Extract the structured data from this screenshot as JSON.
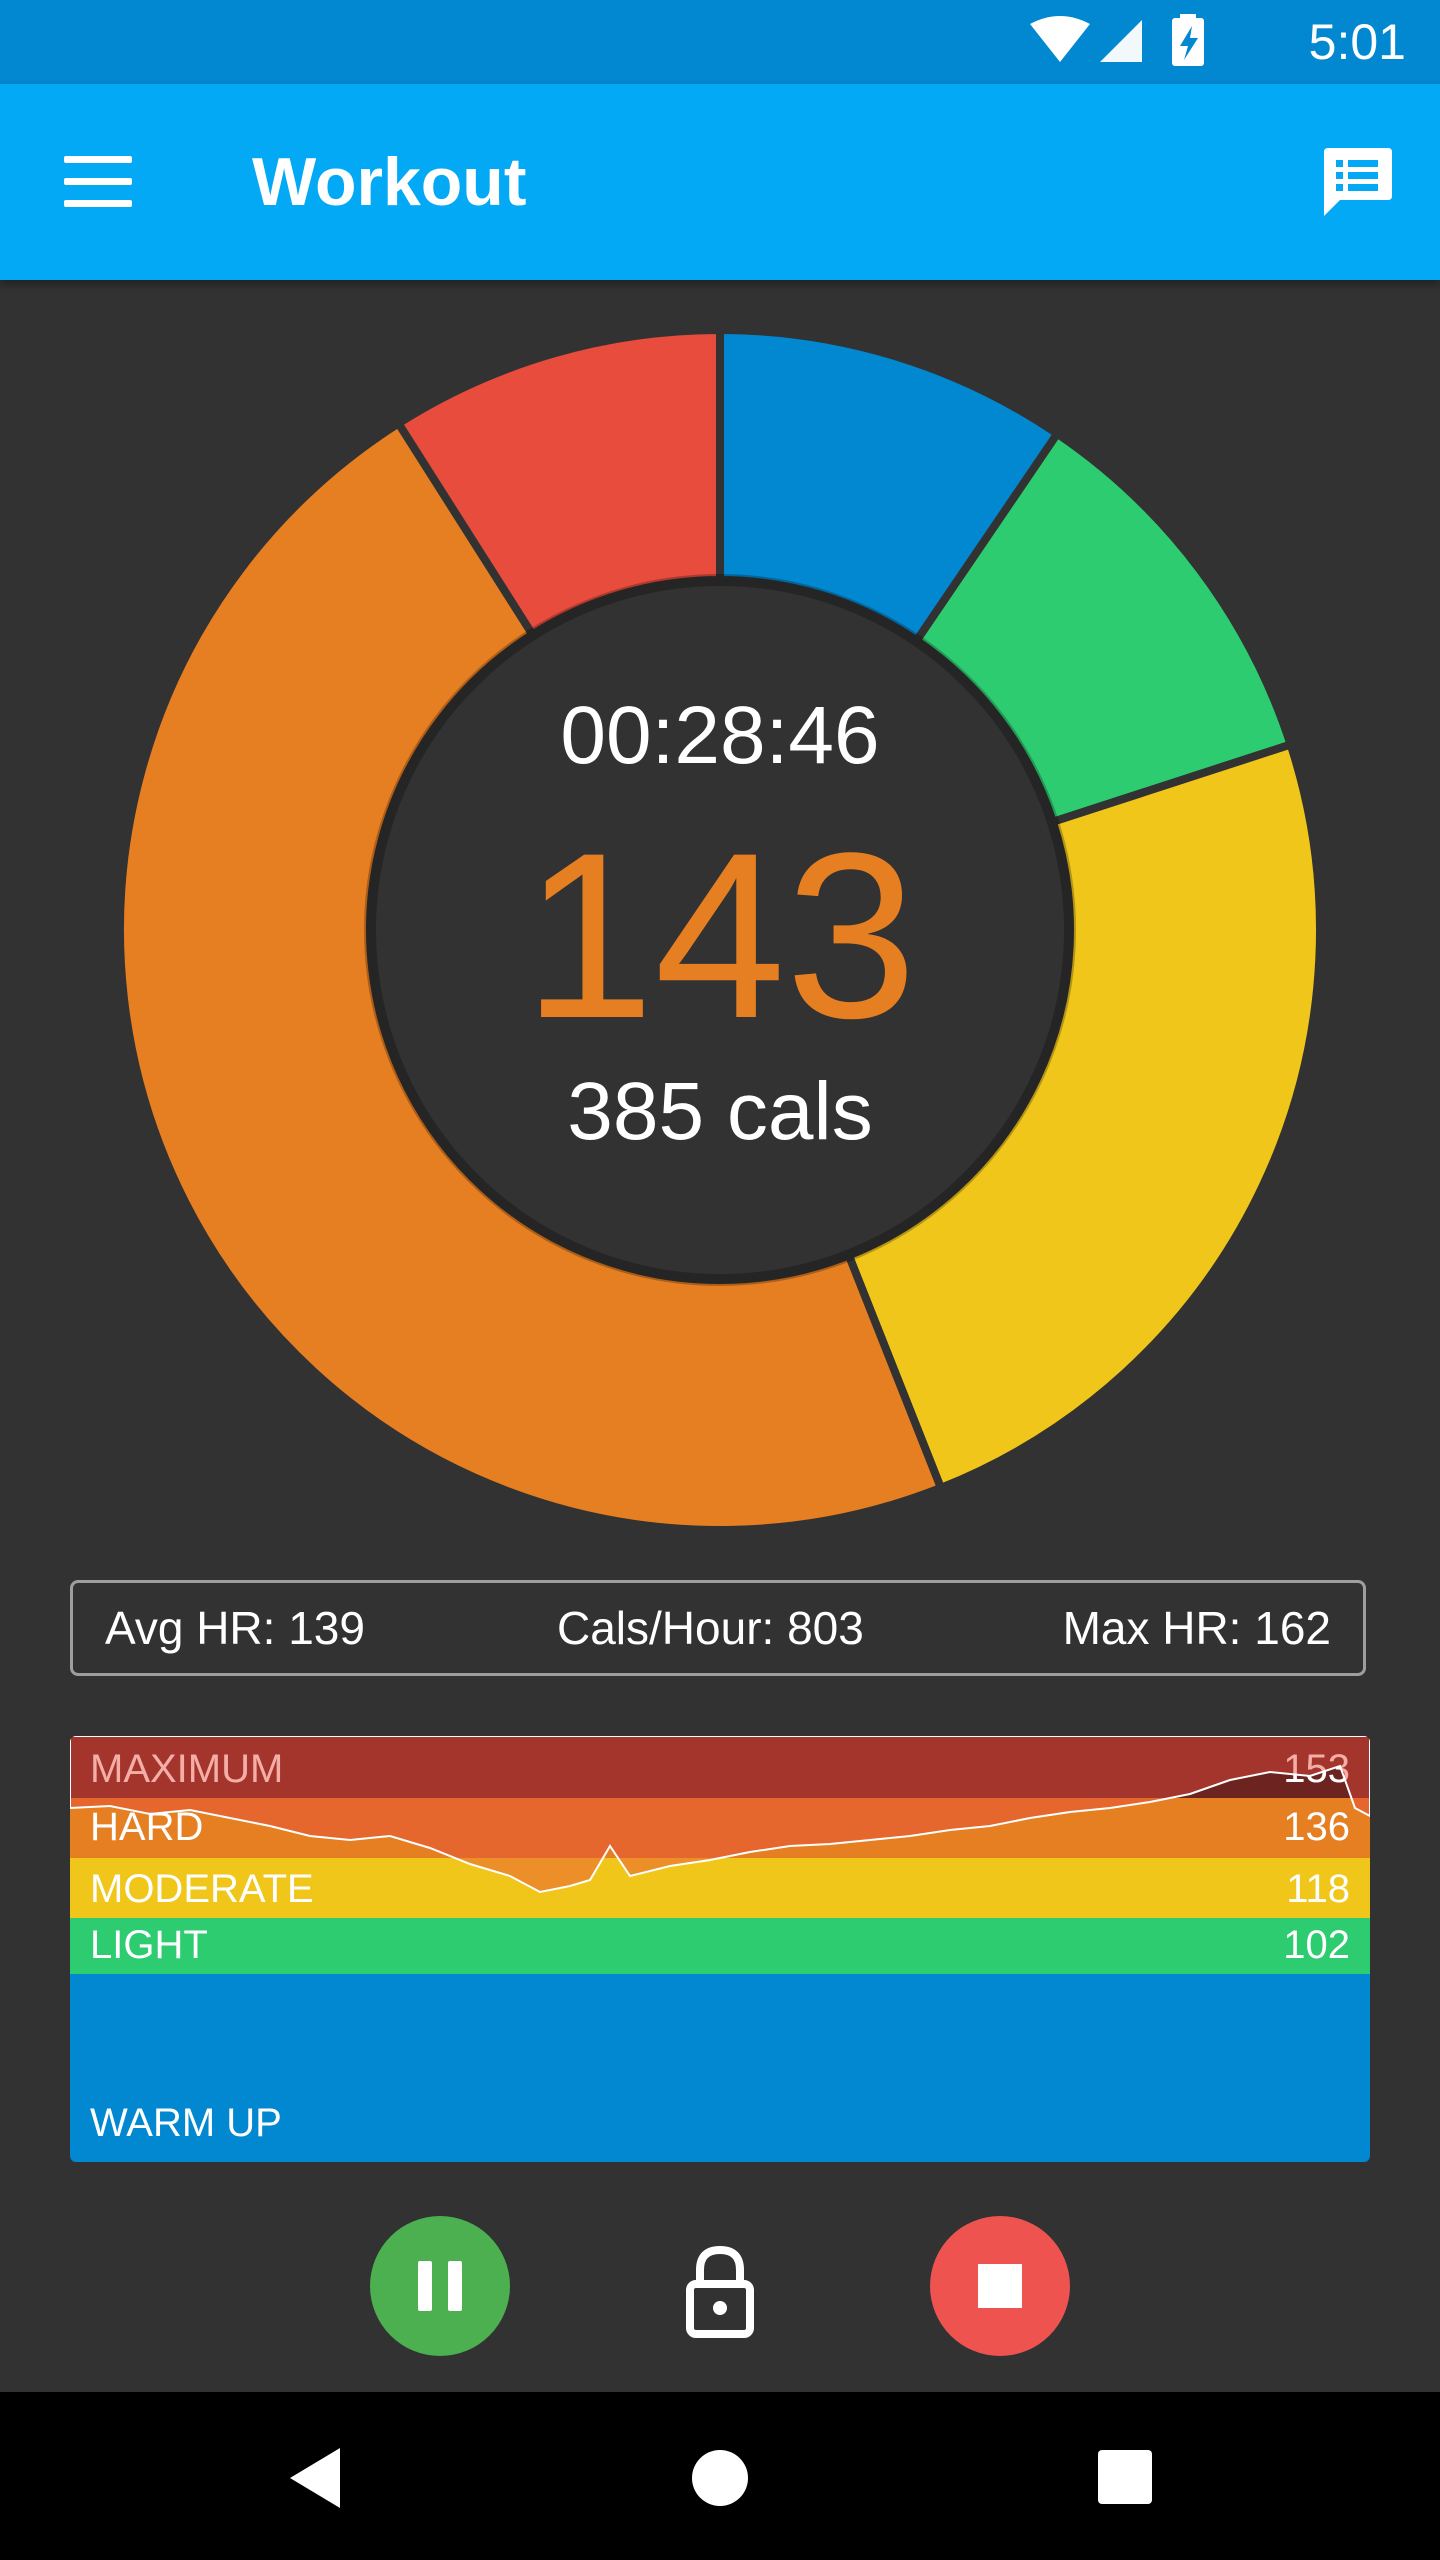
{
  "status_bar": {
    "time": "5:01",
    "icons": [
      "wifi-icon",
      "signal-icon",
      "battery-charging-icon"
    ],
    "background": "#0288d1"
  },
  "app_bar": {
    "title": "Workout",
    "menu_icon": "menu-icon",
    "action_icon": "chat-list-icon",
    "background": "#03a9f4"
  },
  "donut": {
    "elapsed": "00:28:46",
    "heart_rate": "143",
    "calories": "385 cals",
    "segments": [
      {
        "zone": "WARM UP",
        "color": "#0288d1",
        "fraction": 0.095
      },
      {
        "zone": "LIGHT",
        "color": "#2ecc71",
        "fraction": 0.105
      },
      {
        "zone": "MODERATE",
        "color": "#f1c61a",
        "fraction": 0.24
      },
      {
        "zone": "HARD",
        "color": "#e67e22",
        "fraction": 0.47
      },
      {
        "zone": "MAXIMUM",
        "color": "#e74c3c",
        "fraction": 0.09
      }
    ]
  },
  "summary": {
    "avg_hr": "Avg HR: 139",
    "cals_hour": "Cals/Hour: 803",
    "max_hr": "Max HR: 162"
  },
  "zones": [
    {
      "name": "MAXIMUM",
      "value": "153",
      "color": "#6d2320"
    },
    {
      "name": "HARD",
      "value": "136",
      "color": "#e67e22"
    },
    {
      "name": "MODERATE",
      "value": "118",
      "color": "#f1c61a"
    },
    {
      "name": "LIGHT",
      "value": "102",
      "color": "#2ecc71"
    },
    {
      "name": "WARM UP",
      "value": "",
      "color": "#0288d1"
    }
  ],
  "controls": {
    "pause_icon": "pause-icon",
    "lock_icon": "lock-icon",
    "stop_icon": "stop-icon"
  },
  "nav_bar": {
    "icons": [
      "back-icon",
      "home-icon",
      "recents-icon"
    ]
  }
}
